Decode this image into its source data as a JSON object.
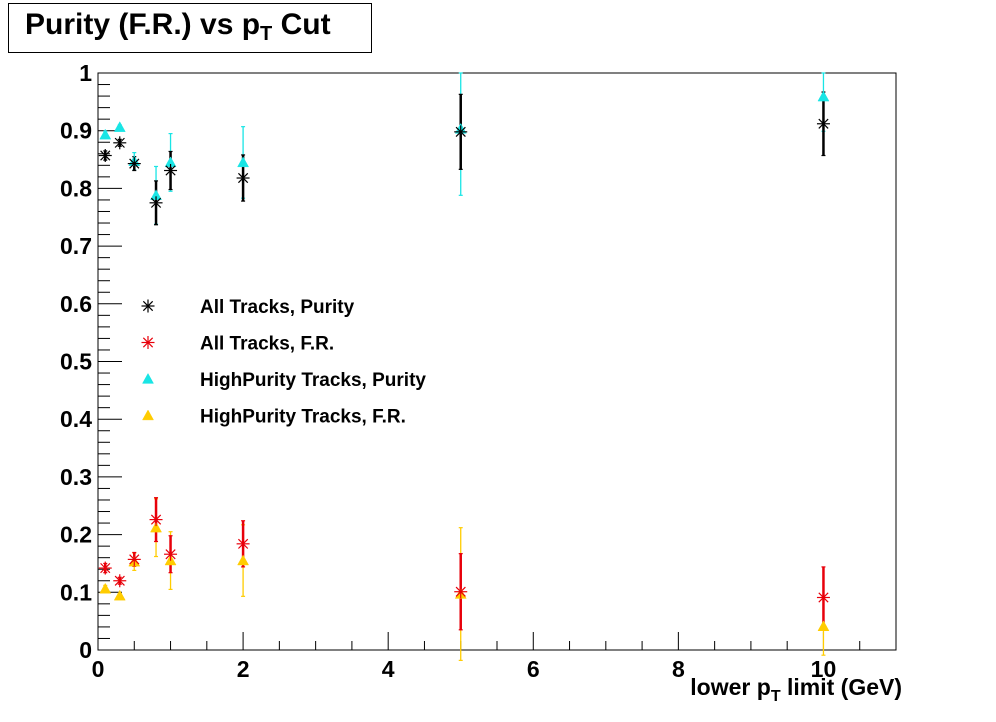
{
  "chart_data": {
    "type": "scatter",
    "title_parts": {
      "pre": "Purity (F.R.) vs p",
      "sub": "T",
      "post": " Cut"
    },
    "xlabel_parts": {
      "pre": "lower p",
      "sub": "T",
      "post": " limit (GeV)"
    },
    "ylabel": "",
    "xlim": [
      0,
      11
    ],
    "ylim": [
      0,
      1
    ],
    "x_ticks": [
      0,
      2,
      4,
      6,
      8,
      10
    ],
    "y_ticks": [
      0,
      0.1,
      0.2,
      0.3,
      0.4,
      0.5,
      0.6,
      0.7,
      0.8,
      0.9,
      1
    ],
    "y_tick_labels": [
      "0",
      "0.1",
      "0.2",
      "0.3",
      "0.4",
      "0.5",
      "0.6",
      "0.7",
      "0.8",
      "0.9",
      "1"
    ],
    "grid": false,
    "legend_position": "left-middle",
    "series": [
      {
        "name": "All Tracks, Purity",
        "marker": "star",
        "color": "#000000",
        "x": [
          0.1,
          0.3,
          0.5,
          0.8,
          1,
          2,
          5,
          10
        ],
        "y": [
          0.857,
          0.879,
          0.843,
          0.775,
          0.831,
          0.818,
          0.898,
          0.912
        ],
        "err": [
          0.008,
          0.006,
          0.012,
          0.038,
          0.033,
          0.04,
          0.065,
          0.055
        ]
      },
      {
        "name": "All Tracks, F.R.",
        "marker": "star",
        "color": "#e8000b",
        "x": [
          0.1,
          0.3,
          0.5,
          0.8,
          1,
          2,
          5,
          10
        ],
        "y": [
          0.142,
          0.12,
          0.157,
          0.226,
          0.166,
          0.184,
          0.101,
          0.091
        ],
        "err": [
          0.008,
          0.006,
          0.012,
          0.038,
          0.032,
          0.04,
          0.066,
          0.053
        ]
      },
      {
        "name": "HighPurity Tracks, Purity",
        "marker": "triangle",
        "color": "#19e5e5",
        "x": [
          0.1,
          0.3,
          0.5,
          0.8,
          1,
          2,
          5,
          10
        ],
        "y": [
          0.893,
          0.906,
          0.847,
          0.788,
          0.845,
          0.845,
          0.903,
          0.959
        ],
        "err": [
          0.006,
          0.004,
          0.015,
          0.05,
          0.05,
          0.062,
          0.115,
          0.06
        ]
      },
      {
        "name": "HighPurity Tracks, F.R.",
        "marker": "triangle",
        "color": "#ffcc00",
        "x": [
          0.1,
          0.3,
          0.5,
          0.8,
          1,
          2,
          5,
          10
        ],
        "y": [
          0.106,
          0.094,
          0.153,
          0.212,
          0.155,
          0.155,
          0.097,
          0.041
        ],
        "err": [
          0.006,
          0.004,
          0.015,
          0.05,
          0.05,
          0.062,
          0.115,
          0.05
        ]
      }
    ]
  }
}
